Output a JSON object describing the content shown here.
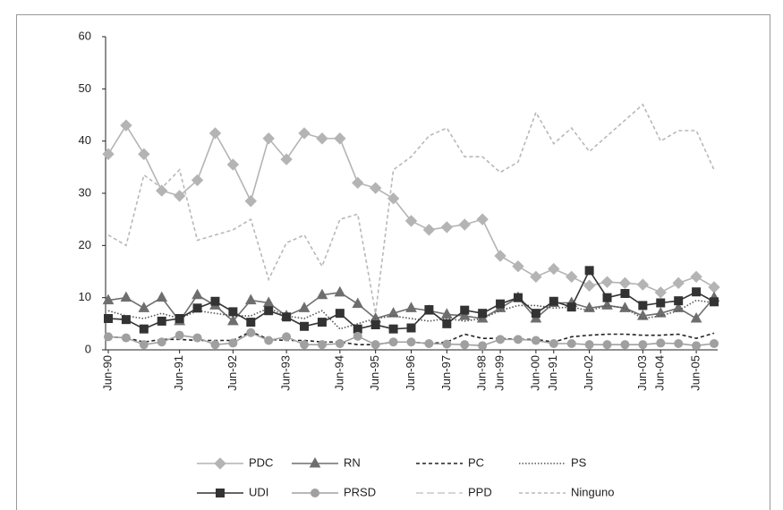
{
  "chart_data": {
    "type": "line",
    "categories": [
      "Jun-90",
      null,
      null,
      null,
      "Jun-91",
      null,
      null,
      "Jun-92",
      null,
      null,
      "Jun-93",
      null,
      null,
      "Jun-94",
      null,
      "Jun-95",
      null,
      "Jun-96",
      null,
      "Jun-97",
      null,
      "Jun-98",
      "Jun-99",
      null,
      "Jun-00",
      "Jun-91",
      null,
      "Jun-02",
      null,
      null,
      "Jun-03",
      "Jun-04",
      null,
      "Jun-05",
      null
    ],
    "ylim": [
      0,
      60
    ],
    "yticks": [
      0,
      10,
      20,
      30,
      40,
      50,
      60
    ],
    "series": [
      {
        "name": "PDC",
        "color": "#b4b4b4",
        "marker": "diamond",
        "dash": "solid",
        "values": [
          37.5,
          43,
          37.5,
          30.5,
          29.5,
          32.5,
          41.5,
          35.5,
          28.5,
          40.5,
          36.5,
          41.5,
          40.5,
          40.5,
          32,
          31,
          29,
          24.7,
          23,
          23.5,
          24,
          25,
          18,
          16,
          14,
          15.5,
          14,
          12.3,
          13,
          12.8,
          12.5,
          11,
          12.8,
          14,
          12
        ]
      },
      {
        "name": "RN",
        "color": "#6e6e6e",
        "marker": "triangle",
        "dash": "solid",
        "values": [
          9.5,
          10,
          8,
          10,
          5.5,
          10.5,
          8.5,
          5.5,
          9.5,
          9,
          6.5,
          8,
          10.5,
          11,
          8.8,
          6,
          7,
          8,
          7.5,
          6.8,
          6.5,
          6,
          8,
          10,
          6,
          9,
          9,
          8,
          8.5,
          8,
          6.5,
          7,
          8,
          6,
          10
        ]
      },
      {
        "name": "PC",
        "color": "#222222",
        "marker": "none",
        "dash": "dashed",
        "values": [
          2.5,
          2.3,
          1.5,
          2,
          2,
          1.8,
          1.8,
          1.8,
          3.5,
          2,
          1.8,
          1.8,
          1.5,
          1.5,
          1,
          1,
          1.5,
          1.5,
          1.2,
          1.5,
          3,
          2.2,
          2.2,
          2,
          2,
          1.5,
          2.5,
          2.8,
          3,
          3,
          2.8,
          2.8,
          3,
          2.2,
          3.2
        ]
      },
      {
        "name": "PS",
        "color": "#555555",
        "marker": "none",
        "dash": "dotted",
        "values": [
          7.5,
          6.5,
          6,
          7,
          6,
          7.5,
          7,
          6.5,
          6.5,
          8,
          6.5,
          6,
          7.5,
          4,
          5,
          6,
          6.5,
          6,
          5.5,
          6,
          5.5,
          6,
          7.5,
          8.5,
          8.5,
          8,
          8.2,
          7.5,
          8.5,
          8,
          6,
          6.5,
          7.5,
          9.5,
          9
        ]
      },
      {
        "name": "UDI",
        "color": "#333333",
        "marker": "square",
        "dash": "solid",
        "values": [
          6,
          5.8,
          4,
          5.5,
          6,
          8,
          9.3,
          7.3,
          5.3,
          7.5,
          6.3,
          4.5,
          5.3,
          7,
          4,
          4.8,
          4,
          4.2,
          7.7,
          5,
          7.6,
          7,
          8.8,
          10,
          7,
          9.3,
          8.2,
          15.2,
          10,
          10.8,
          8.5,
          9,
          9.4,
          11.1,
          9.2
        ]
      },
      {
        "name": "PRSD",
        "color": "#a0a0a0",
        "marker": "circle",
        "dash": "solid",
        "values": [
          2.5,
          2.3,
          1,
          1.5,
          2.8,
          2.3,
          1,
          1.3,
          3.3,
          1.8,
          2.5,
          1,
          1,
          1.2,
          2.6,
          1,
          1.5,
          1.5,
          1.2,
          1.1,
          1,
          0.8,
          2,
          2,
          1.8,
          1.2,
          1.2,
          1,
          1,
          1,
          1,
          1.3,
          1.2,
          0.8,
          1.2
        ]
      },
      {
        "name": "PPD",
        "color": "#c8c8c8",
        "marker": "none",
        "dash": "longdash",
        "values": [
          null,
          null,
          null,
          null,
          null,
          null,
          null,
          null,
          null,
          null,
          null,
          null,
          null,
          null,
          null,
          null,
          null,
          null,
          null,
          null,
          null,
          null,
          null,
          null,
          null,
          null,
          null,
          null,
          null,
          null,
          null,
          null,
          null,
          null,
          null
        ]
      },
      {
        "name": "Ninguno",
        "color": "#b8b8b8",
        "marker": "none",
        "dash": "dashed",
        "values": [
          22,
          20,
          33.5,
          31,
          34.5,
          21,
          22,
          23,
          25,
          13.5,
          20.5,
          22,
          16,
          25,
          26,
          7,
          34.5,
          37,
          41,
          42.5,
          37,
          37,
          34,
          36,
          45.5,
          39.5,
          42.5,
          38,
          41,
          44,
          47,
          40,
          42,
          42,
          34.5
        ]
      }
    ]
  }
}
